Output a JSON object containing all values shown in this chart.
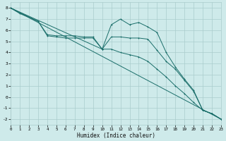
{
  "xlabel": "Humidex (Indice chaleur)",
  "xlim": [
    0,
    23
  ],
  "ylim": [
    -2.5,
    8.5
  ],
  "xticks": [
    0,
    1,
    2,
    3,
    4,
    5,
    6,
    7,
    8,
    9,
    10,
    11,
    12,
    13,
    14,
    15,
    16,
    17,
    18,
    19,
    20,
    21,
    22,
    23
  ],
  "yticks": [
    -2,
    -1,
    0,
    1,
    2,
    3,
    4,
    5,
    6,
    7,
    8
  ],
  "background_color": "#ceeaea",
  "grid_color": "#aacccc",
  "line_color": "#1a6e6a",
  "line1_x": [
    0,
    1,
    3,
    4,
    5,
    6,
    7,
    8,
    9,
    10,
    11,
    12,
    13,
    14,
    15,
    16,
    17,
    18,
    19,
    20,
    21,
    22,
    23
  ],
  "line1_y": [
    8.0,
    7.5,
    6.8,
    5.6,
    5.5,
    5.5,
    5.5,
    5.4,
    5.4,
    4.3,
    6.5,
    7.0,
    6.5,
    6.7,
    6.3,
    5.8,
    4.0,
    2.7,
    1.6,
    0.6,
    -1.2,
    -1.5,
    -2.0
  ],
  "line2_x": [
    0,
    3,
    4,
    5,
    6,
    7,
    8,
    9,
    10,
    11,
    12,
    13,
    14,
    15,
    16,
    17,
    18,
    19,
    20,
    21,
    22,
    23
  ],
  "line2_y": [
    8.0,
    6.8,
    5.5,
    5.4,
    5.3,
    5.3,
    5.3,
    5.3,
    4.3,
    5.4,
    5.4,
    5.3,
    5.3,
    5.2,
    4.2,
    3.2,
    2.5,
    1.5,
    0.5,
    -1.2,
    -1.5,
    -2.0
  ],
  "line3_x": [
    0,
    23
  ],
  "line3_y": [
    8.0,
    -2.0
  ],
  "line4_x": [
    0,
    10,
    11,
    12,
    13,
    14,
    15,
    16,
    17,
    18,
    19,
    20,
    21,
    22,
    23
  ],
  "line4_y": [
    8.0,
    4.3,
    4.3,
    4.0,
    3.8,
    3.6,
    3.2,
    2.5,
    1.8,
    1.0,
    0.3,
    -0.5,
    -1.2,
    -1.5,
    -2.0
  ]
}
